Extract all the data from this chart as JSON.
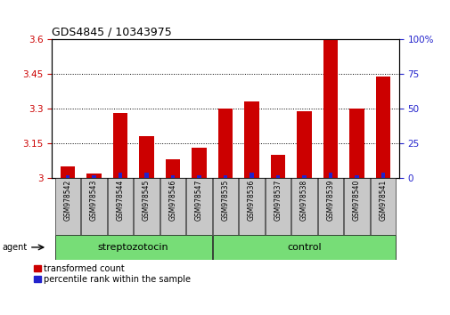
{
  "title": "GDS4845 / 10343975",
  "samples": [
    "GSM978542",
    "GSM978543",
    "GSM978544",
    "GSM978545",
    "GSM978546",
    "GSM978547",
    "GSM978535",
    "GSM978536",
    "GSM978537",
    "GSM978538",
    "GSM978539",
    "GSM978540",
    "GSM978541"
  ],
  "red_values": [
    3.05,
    3.02,
    3.28,
    3.18,
    3.08,
    3.13,
    3.3,
    3.33,
    3.1,
    3.29,
    3.6,
    3.3,
    3.44
  ],
  "blue_percentile": [
    2,
    2,
    4,
    4,
    2,
    2,
    2,
    4,
    2,
    2,
    4,
    2,
    4
  ],
  "ylim_left": [
    3.0,
    3.6
  ],
  "ylim_right": [
    0,
    100
  ],
  "yticks_left": [
    3.0,
    3.15,
    3.3,
    3.45,
    3.6
  ],
  "yticks_right": [
    0,
    25,
    50,
    75,
    100
  ],
  "ytick_labels_left": [
    "3",
    "3.15",
    "3.3",
    "3.45",
    "3.6"
  ],
  "ytick_labels_right": [
    "0",
    "25",
    "50",
    "75",
    "100%"
  ],
  "group1_label": "streptozotocin",
  "group2_label": "control",
  "group1_indices": [
    0,
    1,
    2,
    3,
    4,
    5
  ],
  "group2_indices": [
    6,
    7,
    8,
    9,
    10,
    11,
    12
  ],
  "agent_label": "agent",
  "legend_red": "transformed count",
  "legend_blue": "percentile rank within the sample",
  "bar_color_red": "#cc0000",
  "bar_color_blue": "#2222cc",
  "group_bg_color": "#77dd77",
  "tick_bg_color": "#c8c8c8",
  "bar_width": 0.55,
  "blue_bar_width": 0.15,
  "base_value": 3.0,
  "title_fontsize": 9,
  "tick_label_fontsize": 5.5,
  "group_label_fontsize": 8,
  "legend_fontsize": 7,
  "agent_fontsize": 7
}
